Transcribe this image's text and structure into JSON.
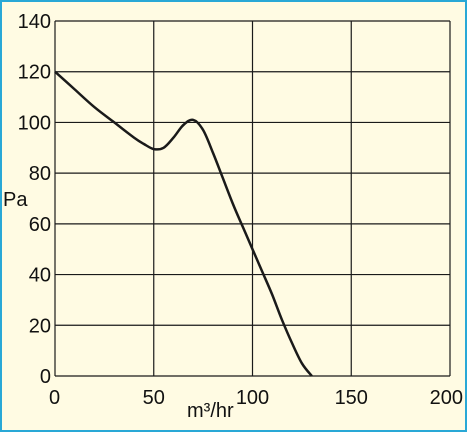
{
  "chart_data": {
    "type": "line",
    "xlabel": "m³/hr",
    "ylabel": "Pa",
    "xlim": [
      0,
      200
    ],
    "ylim": [
      0,
      140
    ],
    "x_ticks": [
      0,
      50,
      100,
      150,
      200
    ],
    "y_ticks": [
      0,
      20,
      40,
      60,
      80,
      100,
      120,
      140
    ],
    "grid": true,
    "series": [
      {
        "x": [
          0,
          10,
          20,
          30,
          40,
          45,
          50,
          55,
          60,
          65,
          70,
          75,
          80,
          85,
          90,
          95,
          100,
          105,
          110,
          115,
          120,
          125,
          130
        ],
        "y": [
          120,
          113,
          106,
          100,
          94,
          91.5,
          89.5,
          90,
          94,
          99,
          101,
          97,
          88,
          78,
          68,
          59,
          50,
          41,
          32,
          22,
          13,
          5,
          0
        ]
      }
    ]
  },
  "colors": {
    "frame_border": "#29a8d6",
    "plot_background": "#fffbe3",
    "grid": "#1a1a1a",
    "line": "#1a1a1a"
  }
}
